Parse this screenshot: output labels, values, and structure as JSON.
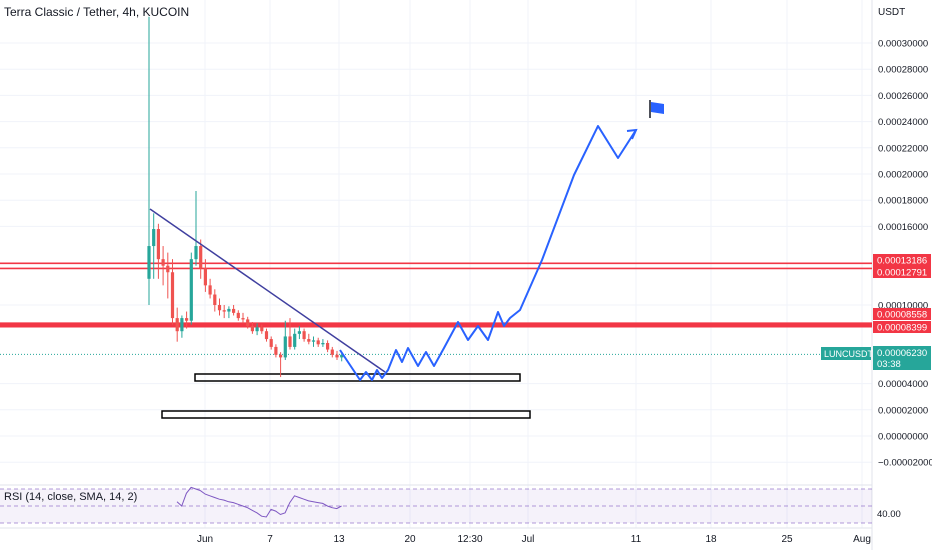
{
  "title": "Terra Classic / Tether, 4h, KUCOIN",
  "rsi_label": "RSI (14, close, SMA, 14, 2)",
  "rsi_value": "40.00",
  "currency": "USDT",
  "ticker_label": "LUNCUSDT",
  "current_price": "0.00006230",
  "countdown": "03:38",
  "colors": {
    "up": "#26a69a",
    "down": "#ef5350",
    "level_line": "#f23645",
    "trendline": "#3f3f9f",
    "projection": "#2962ff",
    "rsi_band": "#7e57c2",
    "ticker_badge": "#26a69a"
  },
  "chart_data": {
    "type": "candlestick",
    "y_axis": {
      "ticks": [
        {
          "value": 0.0003,
          "label": "0.00030000"
        },
        {
          "value": 0.00028,
          "label": "0.00028000"
        },
        {
          "value": 0.00026,
          "label": "0.00026000"
        },
        {
          "value": 0.00024,
          "label": "0.00024000"
        },
        {
          "value": 0.00022,
          "label": "0.00022000"
        },
        {
          "value": 0.0002,
          "label": "0.00020000"
        },
        {
          "value": 0.00018,
          "label": "0.00018000"
        },
        {
          "value": 0.00016,
          "label": "0.00016000"
        },
        {
          "value": 0.0001,
          "label": "0.00010000"
        },
        {
          "value": 4e-05,
          "label": "0.00004000"
        },
        {
          "value": 2e-05,
          "label": "0.00002000"
        },
        {
          "value": 0.0,
          "label": "0.00000000"
        },
        {
          "value": -2e-05,
          "label": "−0.00002000"
        }
      ]
    },
    "x_axis": {
      "ticks": [
        "Jun",
        "7",
        "13",
        "20",
        "12:30",
        "Jul",
        "11",
        "18",
        "25",
        "Aug"
      ]
    },
    "horizontal_levels": [
      {
        "value": 0.00013186,
        "label": "0.00013186"
      },
      {
        "value": 0.00012791,
        "label": "0.00012791"
      },
      {
        "value": 8.558e-05,
        "label": "0.00008558"
      },
      {
        "value": 8.399e-05,
        "label": "0.00008399"
      }
    ],
    "candles": [
      {
        "o": 0.00012,
        "h": 0.00032,
        "l": 0.0001,
        "c": 0.000145
      },
      {
        "o": 0.000145,
        "h": 0.00017,
        "l": 0.00012,
        "c": 0.000158
      },
      {
        "o": 0.000158,
        "h": 0.000162,
        "l": 0.00012,
        "c": 0.000135
      },
      {
        "o": 0.000135,
        "h": 0.000145,
        "l": 0.000115,
        "c": 0.00013
      },
      {
        "o": 0.00013,
        "h": 0.00014,
        "l": 0.000105,
        "c": 0.000125
      },
      {
        "o": 0.000125,
        "h": 0.000135,
        "l": 8.5e-05,
        "c": 9e-05
      },
      {
        "o": 9e-05,
        "h": 9.8e-05,
        "l": 7.2e-05,
        "c": 8e-05
      },
      {
        "o": 8e-05,
        "h": 9.2e-05,
        "l": 7.5e-05,
        "c": 9e-05
      },
      {
        "o": 9e-05,
        "h": 9.5e-05,
        "l": 8.2e-05,
        "c": 8.8e-05
      },
      {
        "o": 8.8e-05,
        "h": 0.00014,
        "l": 8.5e-05,
        "c": 0.000135
      },
      {
        "o": 0.000135,
        "h": 0.000187,
        "l": 0.00013,
        "c": 0.000145
      },
      {
        "o": 0.000145,
        "h": 0.00015,
        "l": 0.00012,
        "c": 0.000128
      },
      {
        "o": 0.000128,
        "h": 0.000135,
        "l": 0.00011,
        "c": 0.000115
      },
      {
        "o": 0.000115,
        "h": 0.00012,
        "l": 0.000105,
        "c": 0.000108
      },
      {
        "o": 0.000108,
        "h": 0.000112,
        "l": 9.5e-05,
        "c": 0.0001
      },
      {
        "o": 0.0001,
        "h": 0.000105,
        "l": 9.2e-05,
        "c": 9.6e-05
      },
      {
        "o": 9.6e-05,
        "h": 0.0001,
        "l": 9e-05,
        "c": 9.5e-05
      },
      {
        "o": 9.5e-05,
        "h": 9.9e-05,
        "l": 9e-05,
        "c": 9.7e-05
      },
      {
        "o": 9.7e-05,
        "h": 0.0001,
        "l": 9.2e-05,
        "c": 9.4e-05
      },
      {
        "o": 9.4e-05,
        "h": 9.6e-05,
        "l": 8.8e-05,
        "c": 9e-05
      },
      {
        "o": 9e-05,
        "h": 9.4e-05,
        "l": 8.6e-05,
        "c": 8.9e-05
      },
      {
        "o": 8.9e-05,
        "h": 9.1e-05,
        "l": 8.2e-05,
        "c": 8.4e-05
      },
      {
        "o": 8.4e-05,
        "h": 8.7e-05,
        "l": 7.8e-05,
        "c": 8e-05
      },
      {
        "o": 8e-05,
        "h": 8.6e-05,
        "l": 7.7e-05,
        "c": 8.3e-05
      },
      {
        "o": 8.3e-05,
        "h": 8.5e-05,
        "l": 7.8e-05,
        "c": 8e-05
      },
      {
        "o": 8e-05,
        "h": 8.2e-05,
        "l": 7.2e-05,
        "c": 7.4e-05
      },
      {
        "o": 7.4e-05,
        "h": 7.6e-05,
        "l": 6.6e-05,
        "c": 6.8e-05
      },
      {
        "o": 6.8e-05,
        "h": 7e-05,
        "l": 6e-05,
        "c": 6.2e-05
      },
      {
        "o": 6.2e-05,
        "h": 6.4e-05,
        "l": 4.5e-05,
        "c": 6e-05
      },
      {
        "o": 6e-05,
        "h": 8.8e-05,
        "l": 5.8e-05,
        "c": 7.6e-05
      },
      {
        "o": 7.6e-05,
        "h": 9e-05,
        "l": 6.6e-05,
        "c": 6.8e-05
      },
      {
        "o": 6.8e-05,
        "h": 8.2e-05,
        "l": 6.6e-05,
        "c": 7.8e-05
      },
      {
        "o": 7.8e-05,
        "h": 8.4e-05,
        "l": 7.4e-05,
        "c": 8e-05
      },
      {
        "o": 8e-05,
        "h": 8.2e-05,
        "l": 7.2e-05,
        "c": 7.4e-05
      },
      {
        "o": 7.4e-05,
        "h": 7.8e-05,
        "l": 7e-05,
        "c": 7.2e-05
      },
      {
        "o": 7.2e-05,
        "h": 7.6e-05,
        "l": 6.8e-05,
        "c": 7.3e-05
      },
      {
        "o": 7.3e-05,
        "h": 7.5e-05,
        "l": 6.8e-05,
        "c": 7e-05
      },
      {
        "o": 7e-05,
        "h": 7.4e-05,
        "l": 6.8e-05,
        "c": 7.1e-05
      },
      {
        "o": 7.1e-05,
        "h": 7.3e-05,
        "l": 6.4e-05,
        "c": 6.6e-05
      },
      {
        "o": 6.6e-05,
        "h": 6.8e-05,
        "l": 6e-05,
        "c": 6.2e-05
      },
      {
        "o": 6.2e-05,
        "h": 6.5e-05,
        "l": 5.8e-05,
        "c": 6e-05
      },
      {
        "o": 6e-05,
        "h": 6.4e-05,
        "l": 5.7e-05,
        "c": 6.2e-05
      }
    ],
    "rsi": [
      45,
      40,
      55,
      62,
      60,
      58,
      54,
      52,
      50,
      48,
      47,
      45,
      44,
      42,
      40,
      38,
      35,
      32,
      28,
      27,
      36,
      34,
      30,
      32,
      44,
      52,
      50,
      48,
      46,
      45,
      44,
      43,
      40,
      38,
      37,
      40
    ]
  }
}
